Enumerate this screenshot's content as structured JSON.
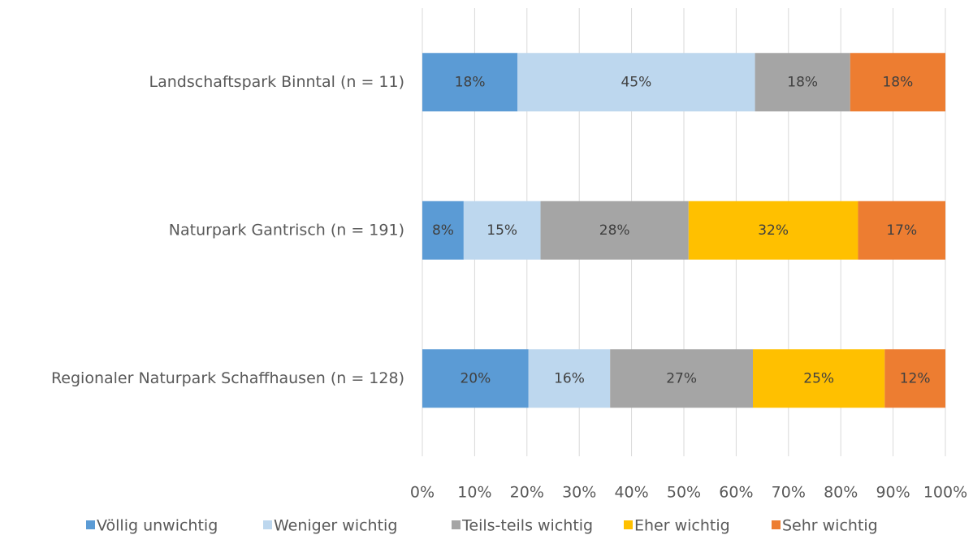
{
  "chart_data": {
    "type": "stacked-barh",
    "categories": [
      "Landschaftspark Binntal (n = 11)",
      "Naturpark Gantrisch (n = 191)",
      "Regionaler Naturpark Schaffhausen (n = 128)"
    ],
    "series": [
      {
        "name": "Völlig unwichtig",
        "color": "#5b9bd5",
        "values": [
          18.2,
          7.9,
          20.3
        ],
        "value_labels": [
          "18%",
          "8%",
          "20%"
        ]
      },
      {
        "name": "Weniger wichtig",
        "color": "#bdd7ee",
        "values": [
          45.4,
          14.7,
          15.6
        ],
        "value_labels": [
          "45%",
          "15%",
          "16%"
        ]
      },
      {
        "name": "Teils-teils wichtig",
        "color": "#a5a5a5",
        "values": [
          18.2,
          28.3,
          27.3
        ],
        "value_labels": [
          "18%",
          "28%",
          "27%"
        ]
      },
      {
        "name": "Eher wichtig",
        "color": "#ffc000",
        "values": [
          null,
          32.4,
          25.2
        ],
        "value_labels": [
          null,
          "32%",
          "25%"
        ]
      },
      {
        "name": "Sehr wichtig",
        "color": "#ed7d31",
        "values": [
          18.2,
          16.7,
          11.6
        ],
        "value_labels": [
          "18%",
          "17%",
          "12%"
        ]
      }
    ],
    "xlim": [
      0,
      100
    ],
    "xticks": [
      {
        "value": 0,
        "label": "0%"
      },
      {
        "value": 10,
        "label": "10%"
      },
      {
        "value": 20,
        "label": "20%"
      },
      {
        "value": 30,
        "label": "30%"
      },
      {
        "value": 40,
        "label": "40%"
      },
      {
        "value": 50,
        "label": "50%"
      },
      {
        "value": 60,
        "label": "60%"
      },
      {
        "value": 70,
        "label": "70%"
      },
      {
        "value": 80,
        "label": "80%"
      },
      {
        "value": 90,
        "label": "90%"
      },
      {
        "value": 100,
        "label": "100%"
      }
    ],
    "grid": true,
    "legend": "bottom"
  }
}
